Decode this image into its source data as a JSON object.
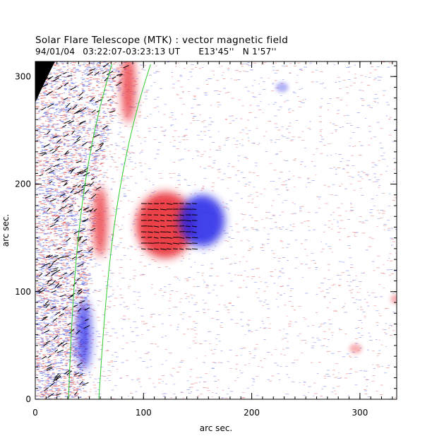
{
  "chart_data": {
    "type": "heatmap",
    "title": "Solar Flare Telescope (MTK) : vector magnetic field",
    "subtitle": {
      "date": "94/01/04",
      "time_range": "03:22:07-03:23:13 UT",
      "longitude": "E13'45''",
      "latitude": "N 1'57''"
    },
    "xlabel": "arc sec.",
    "ylabel": "arc sec.",
    "xlim": [
      0,
      334
    ],
    "ylim": [
      0,
      314
    ],
    "x_major_ticks": [
      0,
      100,
      200,
      300
    ],
    "y_major_ticks": [
      0,
      100,
      200,
      300
    ],
    "x_minor_step": 10,
    "y_minor_step": 10,
    "colors": {
      "positive_polarity": "#e8202a",
      "negative_polarity": "#2020e8",
      "transverse_vectors": "#000000",
      "limb_contours": "#2ecc2e",
      "off_disk": "#000000"
    },
    "features": [
      {
        "name": "positive_spot",
        "polarity": "positive",
        "x": 120,
        "y": 162,
        "radius": 18
      },
      {
        "name": "negative_spot",
        "polarity": "negative",
        "x": 154,
        "y": 166,
        "radius": 14
      },
      {
        "name": "limb_positive_band_upper",
        "polarity": "positive",
        "x": 86,
        "y": 290
      },
      {
        "name": "limb_positive_band_middle",
        "polarity": "positive",
        "x": 60,
        "y": 165
      },
      {
        "name": "limb_negative_band_lower",
        "polarity": "negative",
        "x": 45,
        "y": 60
      },
      {
        "name": "small_positive_blob_1",
        "polarity": "positive",
        "x": 296,
        "y": 47
      },
      {
        "name": "small_negative_blob_1",
        "polarity": "negative",
        "x": 228,
        "y": 290
      },
      {
        "name": "small_positive_blob_2",
        "polarity": "positive",
        "x": 334,
        "y": 93
      }
    ]
  }
}
